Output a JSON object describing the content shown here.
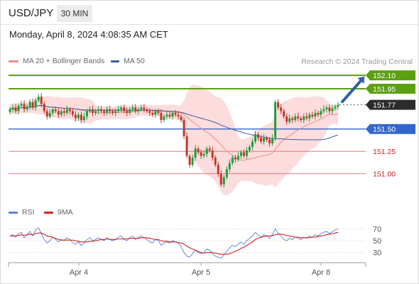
{
  "header": {
    "pair": "USD/JPY",
    "timeframe": "30 MIN",
    "datetime": "Monday, April 8, 2024 4:08:35 AM CET",
    "credit": "Research © 2024 Trading Central"
  },
  "legend": {
    "ma20": "MA 20 + Bollinger Bands",
    "ma50": "MA 50",
    "rsi": "RSI",
    "rsi_ma": "9MA"
  },
  "colors": {
    "candle_up": "#1f9d3e",
    "candle_down": "#c0392b",
    "bollinger_band": "#fcdcdc",
    "ma20": "#f08b8b",
    "ma50": "#3b5c9e",
    "resistance": "#5aa010",
    "pivot": "#3366cc",
    "support": "#e06666",
    "rsi": "#5b7fd6",
    "rsi_ma": "#d62020",
    "arrow": "#2e5ea8"
  },
  "chart_data": [
    {
      "type": "candlestick",
      "y_range": [
        150.72,
        152.18
      ],
      "x_ticks": [
        "Apr 4",
        "Apr 5",
        "Apr 8"
      ],
      "levels": [
        {
          "label": "152.10",
          "value": 152.1,
          "kind": "resistance"
        },
        {
          "label": "151.95",
          "value": 151.95,
          "kind": "resistance"
        },
        {
          "label": "151.77",
          "value": 151.77,
          "kind": "last"
        },
        {
          "label": "151.50",
          "value": 151.5,
          "kind": "pivot"
        },
        {
          "label": "151.25",
          "value": 151.25,
          "kind": "support"
        },
        {
          "label": "151.00",
          "value": 151.0,
          "kind": "support"
        }
      ],
      "target_arrow": {
        "from": 151.78,
        "to": 152.07
      },
      "close": [
        151.72,
        151.74,
        151.7,
        151.76,
        151.78,
        151.72,
        151.75,
        151.8,
        151.74,
        151.82,
        151.86,
        151.78,
        151.7,
        151.64,
        151.68,
        151.72,
        151.7,
        151.66,
        151.7,
        151.68,
        151.72,
        151.7,
        151.66,
        151.62,
        151.66,
        151.6,
        151.64,
        151.7,
        151.72,
        151.68,
        151.7,
        151.72,
        151.7,
        151.68,
        151.72,
        151.7,
        151.68,
        151.7,
        151.72,
        151.74,
        151.7,
        151.68,
        151.72,
        151.74,
        151.7,
        151.72,
        151.74,
        151.72,
        151.7,
        151.68,
        151.66,
        151.7,
        151.68,
        151.6,
        151.64,
        151.66,
        151.64,
        151.68,
        151.66,
        151.64,
        151.6,
        151.42,
        151.2,
        151.1,
        151.18,
        151.28,
        151.24,
        151.2,
        151.22,
        151.28,
        151.26,
        151.18,
        151.1,
        151.0,
        150.88,
        150.96,
        151.05,
        151.12,
        151.18,
        151.16,
        151.2,
        151.24,
        151.2,
        151.26,
        151.3,
        151.36,
        151.44,
        151.4,
        151.36,
        151.4,
        151.38,
        151.34,
        151.4,
        151.8,
        151.74,
        151.7,
        151.64,
        151.58,
        151.62,
        151.6,
        151.64,
        151.62,
        151.6,
        151.64,
        151.62,
        151.66,
        151.64,
        151.68,
        151.66,
        151.7,
        151.72,
        151.74,
        151.7,
        151.73,
        151.75,
        151.77
      ],
      "ma20_first": 151.66,
      "ma20_last": 151.62,
      "ma50_first": 151.6,
      "ma50_last": 151.48
    },
    {
      "type": "line",
      "title": "RSI",
      "y_ticks": [
        30,
        50,
        70
      ],
      "series": [
        {
          "name": "RSI",
          "values": [
            58,
            60,
            56,
            62,
            64,
            55,
            60,
            66,
            58,
            68,
            72,
            62,
            52,
            46,
            50,
            56,
            52,
            48,
            52,
            50,
            55,
            52,
            47,
            44,
            48,
            42,
            46,
            52,
            55,
            50,
            52,
            55,
            52,
            50,
            55,
            52,
            50,
            52,
            56,
            58,
            52,
            50,
            55,
            58,
            52,
            55,
            58,
            55,
            52,
            48,
            46,
            52,
            50,
            42,
            46,
            48,
            46,
            50,
            48,
            46,
            40,
            30,
            24,
            22,
            28,
            34,
            30,
            28,
            30,
            36,
            34,
            28,
            24,
            22,
            20,
            26,
            32,
            38,
            42,
            40,
            44,
            48,
            44,
            50,
            54,
            58,
            64,
            60,
            56,
            60,
            58,
            54,
            60,
            70,
            62,
            58,
            52,
            50,
            54,
            52,
            56,
            54,
            52,
            56,
            54,
            58,
            56,
            60,
            58,
            62,
            64,
            66,
            62,
            65,
            68,
            70
          ]
        },
        {
          "name": "9MA",
          "values": [
            58,
            58,
            58,
            59,
            60,
            59,
            60,
            61,
            60,
            62,
            63,
            63,
            61,
            58,
            57,
            56,
            54,
            52,
            51,
            51,
            51,
            51,
            51,
            50,
            49,
            48,
            48,
            48,
            49,
            49,
            50,
            51,
            52,
            52,
            53,
            52,
            52,
            52,
            53,
            53,
            53,
            53,
            54,
            54,
            54,
            54,
            55,
            55,
            55,
            54,
            53,
            52,
            52,
            50,
            49,
            49,
            48,
            48,
            48,
            47,
            46,
            44,
            41,
            38,
            36,
            34,
            32,
            30,
            29,
            30,
            30,
            30,
            29,
            28,
            27,
            27,
            27,
            28,
            30,
            32,
            34,
            37,
            39,
            42,
            45,
            48,
            52,
            54,
            56,
            57,
            58,
            58,
            59,
            60,
            61,
            61,
            60,
            59,
            58,
            57,
            56,
            56,
            55,
            55,
            55,
            55,
            56,
            56,
            57,
            58,
            59,
            60,
            61,
            62,
            63,
            64
          ]
        }
      ]
    }
  ]
}
